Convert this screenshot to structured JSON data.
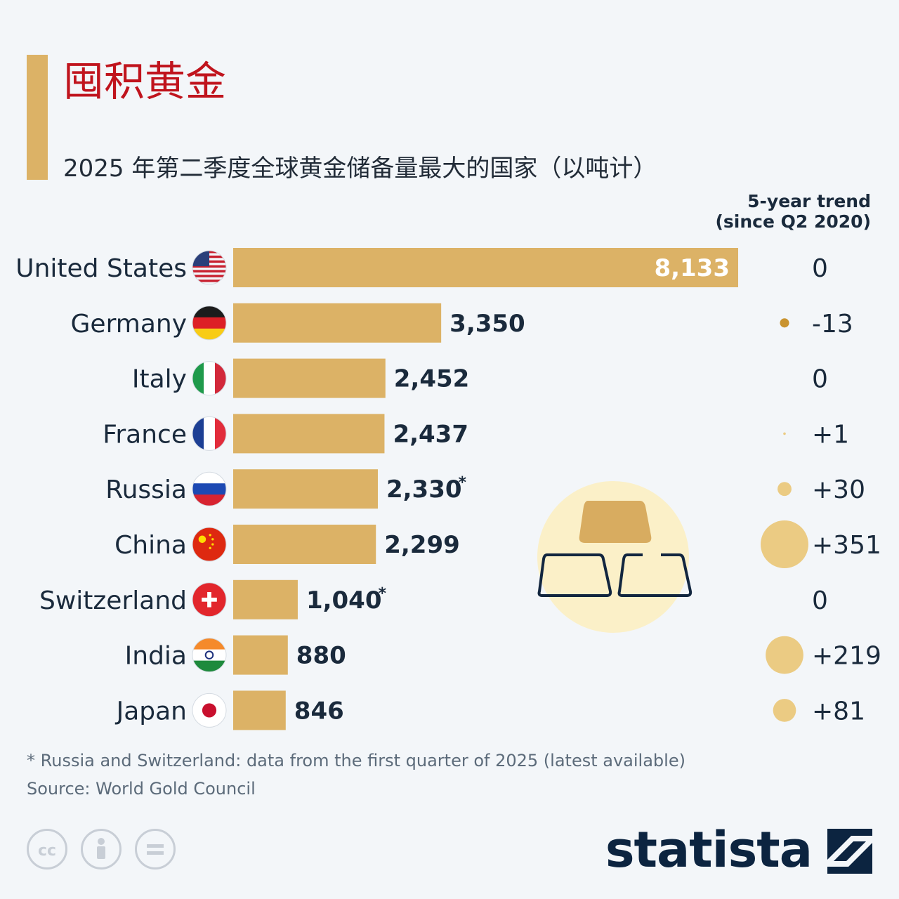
{
  "title": "囤积黄金",
  "subtitle": "2025 年第二季度全球黄金储备量最大的国家（以吨计）",
  "trend_header": [
    "5-year trend",
    "(since Q2 2020)"
  ],
  "colors": {
    "bar": "#dcb266",
    "accent": "#dcb266",
    "title": "#c0141d",
    "negative_dot": "#c9932f",
    "positive_dot": "#ebcb83",
    "text": "#1a2a3c"
  },
  "chart_data": {
    "type": "bar",
    "orientation": "horizontal",
    "title": "2025 年第二季度全球黄金储备量最大的国家（以吨计）",
    "categories": [
      "United States",
      "Germany",
      "Italy",
      "France",
      "Russia",
      "China",
      "Switzerland",
      "India",
      "Japan"
    ],
    "values": [
      8133,
      3350,
      2452,
      2437,
      2330,
      2299,
      1040,
      880,
      846
    ],
    "value_labels": [
      "8,133",
      "3,350",
      "2,452",
      "2,437",
      "2,330",
      "2,299",
      "1,040",
      "880",
      "846"
    ],
    "footnote_markers": [
      "",
      "",
      "",
      "",
      "*",
      "",
      "*",
      "",
      ""
    ],
    "flag_icons": [
      "us-flag-icon",
      "germany-flag-icon",
      "italy-flag-icon",
      "france-flag-icon",
      "russia-flag-icon",
      "china-flag-icon",
      "switzerland-flag-icon",
      "india-flag-icon",
      "japan-flag-icon"
    ],
    "trend": {
      "name": "5-year trend (since Q2 2020)",
      "values": [
        0,
        -13,
        0,
        1,
        30,
        351,
        0,
        219,
        81
      ],
      "labels": [
        "0",
        "-13",
        "0",
        "+1",
        "+30",
        "+351",
        "0",
        "+219",
        "+81"
      ]
    },
    "xlim": [
      0,
      8133
    ],
    "grid": false,
    "legend": "none"
  },
  "footnote": "* Russia and Switzerland: data from the first quarter of 2025 (latest available)",
  "source": "Source: World Gold Council",
  "logo": "statista",
  "icons": [
    "cc-icon",
    "attribution-icon",
    "no-derivatives-icon",
    "gold-bars-icon",
    "statista-logo-icon"
  ]
}
